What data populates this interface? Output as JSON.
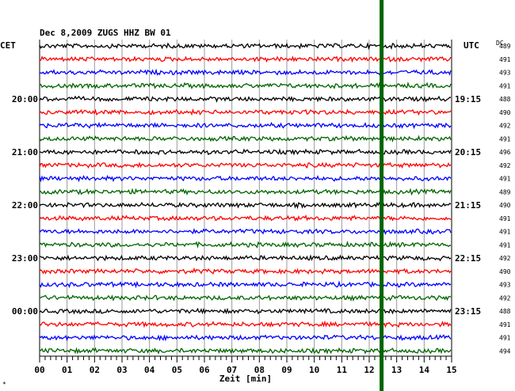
{
  "chart_data": {
    "type": "line",
    "title": "Dec 8,2009   ZUGS HHZ BW 01",
    "left_timezone": "CET",
    "right_timezone": "UTC",
    "dc_label": "DC",
    "xlabel": "Zeit [min]",
    "xlim": [
      0,
      15
    ],
    "x_ticks": [
      "00",
      "01",
      "02",
      "03",
      "04",
      "05",
      "06",
      "07",
      "08",
      "09",
      "10",
      "11",
      "12",
      "13",
      "14",
      "15"
    ],
    "left_hour_labels": [
      "20:00",
      "21:00",
      "22:00",
      "23:00",
      "00:00"
    ],
    "right_hour_labels": [
      "19:15",
      "20:15",
      "21:15",
      "22:15",
      "23:15"
    ],
    "trace_colors": [
      "#000000",
      "#ff0000",
      "#0000ff",
      "#006400"
    ],
    "dc_values": [
      489,
      491,
      493,
      491,
      488,
      490,
      492,
      491,
      496,
      492,
      491,
      489,
      490,
      491,
      491,
      491,
      492,
      490,
      493,
      492,
      488,
      491,
      491,
      494
    ],
    "event_marker": {
      "minute": 12.45,
      "color": "#006400"
    },
    "grid": true
  },
  "corner_mark": "*"
}
